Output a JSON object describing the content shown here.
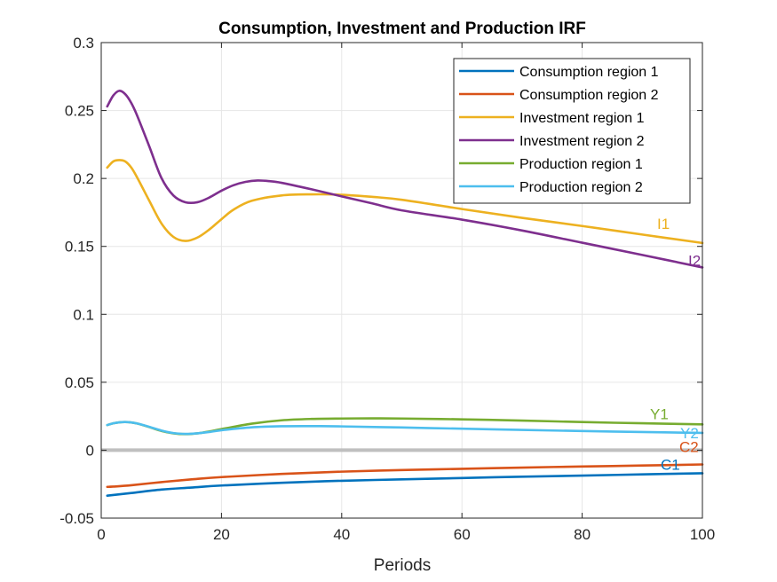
{
  "chart_data": {
    "type": "line",
    "title": "Consumption, Investment and Production IRF",
    "xlabel": "Periods",
    "ylabel": "",
    "xlim": [
      0,
      100
    ],
    "ylim": [
      -0.05,
      0.3
    ],
    "xticks": [
      "0",
      "20",
      "40",
      "60",
      "80",
      "100"
    ],
    "yticks": [
      "-0.05",
      "0",
      "0.05",
      "0.1",
      "0.15",
      "0.2",
      "0.25",
      "0.3"
    ],
    "grid": true,
    "legend_position": "top-right",
    "zero_line_color": "#bfbfbf",
    "series": [
      {
        "name": "Consumption region 1",
        "end_label": "C1",
        "color": "#0072BD",
        "x": [
          1,
          2,
          5,
          10,
          15,
          20,
          30,
          40,
          50,
          60,
          70,
          80,
          90,
          100
        ],
        "y": [
          -0.0335,
          -0.033,
          -0.0315,
          -0.029,
          -0.0275,
          -0.026,
          -0.024,
          -0.0225,
          -0.0215,
          -0.0205,
          -0.0195,
          -0.0187,
          -0.0178,
          -0.017
        ]
      },
      {
        "name": "Consumption region 2",
        "end_label": "C2",
        "color": "#D95319",
        "x": [
          1,
          2,
          5,
          10,
          15,
          20,
          30,
          40,
          50,
          60,
          70,
          80,
          90,
          100
        ],
        "y": [
          -0.027,
          -0.0268,
          -0.0258,
          -0.0235,
          -0.0215,
          -0.0198,
          -0.0175,
          -0.0158,
          -0.0146,
          -0.0137,
          -0.0128,
          -0.012,
          -0.0113,
          -0.0105
        ]
      },
      {
        "name": "Investment region 1",
        "end_label": "I1",
        "color": "#EDB120",
        "x": [
          1,
          2,
          3,
          4,
          5,
          6,
          8,
          10,
          12,
          14,
          16,
          18,
          20,
          22,
          25,
          30,
          35,
          40,
          45,
          50,
          60,
          70,
          80,
          90,
          100
        ],
        "y": [
          0.208,
          0.2125,
          0.2135,
          0.2125,
          0.208,
          0.2005,
          0.1835,
          0.167,
          0.157,
          0.154,
          0.1565,
          0.1625,
          0.17,
          0.177,
          0.1835,
          0.1875,
          0.1883,
          0.188,
          0.1865,
          0.1843,
          0.1775,
          0.171,
          0.165,
          0.1587,
          0.1525
        ]
      },
      {
        "name": "Investment region 2",
        "end_label": "I2",
        "color": "#7E2F8E",
        "x": [
          1,
          2,
          3,
          4,
          5,
          6,
          8,
          10,
          12,
          14,
          16,
          18,
          20,
          22,
          24,
          26,
          28,
          30,
          35,
          40,
          45,
          50,
          60,
          70,
          80,
          90,
          100
        ],
        "y": [
          0.253,
          0.261,
          0.2645,
          0.262,
          0.2555,
          0.246,
          0.2235,
          0.2005,
          0.1875,
          0.1825,
          0.1825,
          0.186,
          0.191,
          0.195,
          0.1975,
          0.1985,
          0.198,
          0.1968,
          0.192,
          0.1868,
          0.1817,
          0.1765,
          0.1697,
          0.1617,
          0.1527,
          0.1437,
          0.1345
        ]
      },
      {
        "name": "Production region 1",
        "end_label": "Y1",
        "color": "#77AC30",
        "x": [
          1,
          2,
          3,
          4,
          5,
          6,
          8,
          10,
          12,
          14,
          16,
          18,
          20,
          25,
          30,
          35,
          40,
          45,
          50,
          60,
          70,
          80,
          90,
          100
        ],
        "y": [
          0.0185,
          0.0198,
          0.0205,
          0.0207,
          0.0204,
          0.0196,
          0.017,
          0.0142,
          0.0124,
          0.0118,
          0.0124,
          0.0138,
          0.0155,
          0.0195,
          0.022,
          0.023,
          0.0233,
          0.0234,
          0.0233,
          0.0227,
          0.0218,
          0.0207,
          0.0198,
          0.019
        ]
      },
      {
        "name": "Production region 2",
        "end_label": "Y2",
        "color": "#4DBEEE",
        "x": [
          1,
          2,
          3,
          4,
          5,
          6,
          8,
          10,
          12,
          14,
          16,
          18,
          20,
          25,
          30,
          35,
          40,
          50,
          60,
          70,
          80,
          90,
          100
        ],
        "y": [
          0.0185,
          0.0198,
          0.0205,
          0.0207,
          0.0204,
          0.0196,
          0.0172,
          0.0145,
          0.0126,
          0.012,
          0.0124,
          0.0134,
          0.0147,
          0.0168,
          0.0176,
          0.0177,
          0.0175,
          0.0167,
          0.0158,
          0.0149,
          0.0141,
          0.0134,
          0.0127
        ]
      }
    ]
  }
}
